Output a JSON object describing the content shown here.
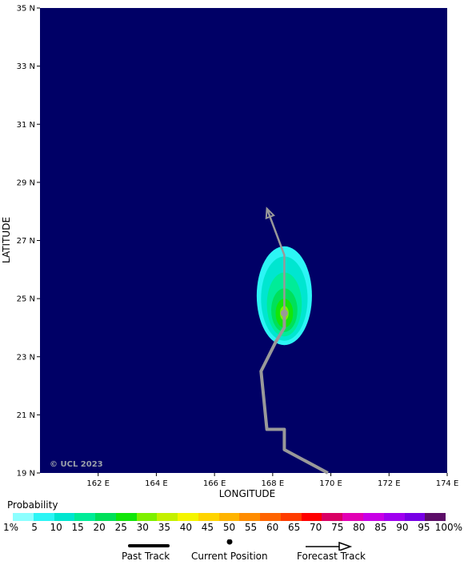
{
  "map": {
    "xlabel": "LONGITUDE",
    "ylabel": "LATITUDE",
    "lon_ticks": [
      "162 E",
      "164 E",
      "166 E",
      "168 E",
      "170 E",
      "172 E",
      "174 E"
    ],
    "lat_ticks": [
      "35 N",
      "33 N",
      "31 N",
      "29 N",
      "27 N",
      "25 N",
      "23 N",
      "21 N",
      "19 N"
    ],
    "lon_range": [
      160,
      174
    ],
    "lat_range": [
      19,
      35
    ],
    "copyright": "© UCL 2023",
    "ocean_color": "#000066",
    "track_color": "#999999",
    "past_track": [
      [
        169.9,
        19.0
      ],
      [
        168.4,
        19.8
      ],
      [
        168.4,
        20.5
      ],
      [
        167.8,
        20.5
      ],
      [
        167.6,
        22.5
      ],
      [
        168.1,
        23.5
      ],
      [
        168.4,
        24.0
      ],
      [
        168.4,
        24.5
      ]
    ],
    "current_position": [
      168.4,
      24.5
    ],
    "forecast_track": [
      [
        168.4,
        24.5
      ],
      [
        168.4,
        26.5
      ],
      [
        167.8,
        28.1
      ]
    ],
    "probability_field": [
      {
        "level": 5,
        "center": [
          168.4,
          25.1
        ],
        "radii_deg": [
          0.95,
          1.7
        ]
      },
      {
        "level": 10,
        "center": [
          168.4,
          25.0
        ],
        "radii_deg": [
          0.8,
          1.45
        ]
      },
      {
        "level": 15,
        "center": [
          168.4,
          24.8
        ],
        "radii_deg": [
          0.6,
          1.1
        ]
      },
      {
        "level": 20,
        "center": [
          168.4,
          24.6
        ],
        "radii_deg": [
          0.45,
          0.75
        ]
      },
      {
        "level": 25,
        "center": [
          168.4,
          24.5
        ],
        "radii_deg": [
          0.3,
          0.5
        ]
      },
      {
        "level": 30,
        "center": [
          168.4,
          24.5
        ],
        "radii_deg": [
          0.15,
          0.25
        ]
      }
    ]
  },
  "legend": {
    "title": "Probability",
    "labels": [
      "1%",
      "5",
      "10",
      "15",
      "20",
      "25",
      "30",
      "35",
      "40",
      "45",
      "50",
      "55",
      "60",
      "65",
      "70",
      "75",
      "80",
      "85",
      "90",
      "95",
      "100%"
    ],
    "colors": [
      "#8cffff",
      "#2cf5f5",
      "#00e6d0",
      "#00ec98",
      "#00e05a",
      "#12e60a",
      "#7ef000",
      "#c4f000",
      "#f5f500",
      "#ffd400",
      "#ffb400",
      "#ff8c00",
      "#ff6400",
      "#ff3c00",
      "#ff0000",
      "#d90064",
      "#e200b4",
      "#c800e6",
      "#a000f0",
      "#7800e6",
      "#5c0d68"
    ],
    "past_track_label": "Past Track",
    "current_position_label": "Current Position",
    "forecast_track_label": "Forecast Track"
  }
}
